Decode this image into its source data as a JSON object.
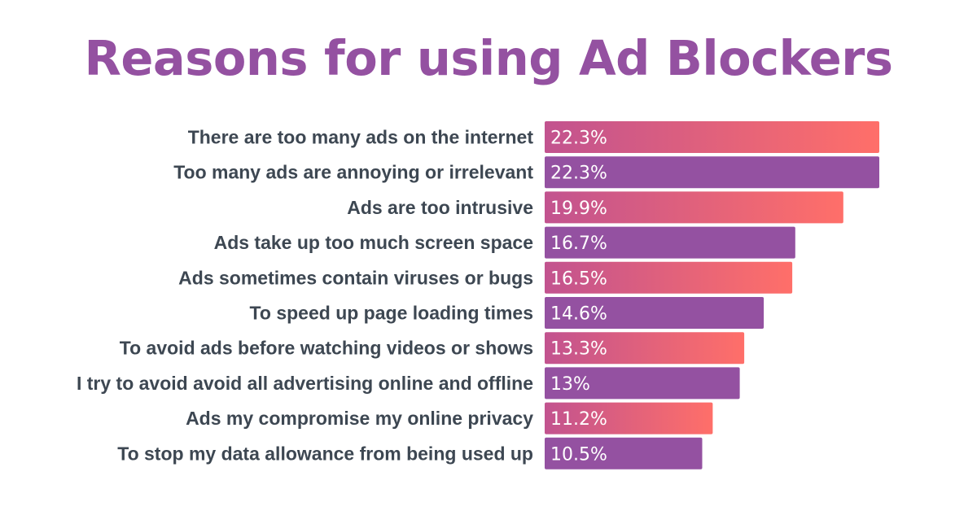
{
  "title": "Reasons for using Ad Blockers",
  "colors": {
    "title": "#9451a1",
    "label": "#3d4752",
    "purple": "#9451a1",
    "gradient_start": "#c2538f",
    "gradient_end": "#ff6f69",
    "value_text": "#ffffff"
  },
  "chart_data": {
    "type": "bar",
    "orientation": "horizontal",
    "title": "Reasons for using Ad Blockers",
    "categories": [
      "There are too many ads on the internet",
      "Too many ads are annoying or irrelevant",
      "Ads are too intrusive",
      "Ads take up too much screen space",
      "Ads sometimes contain viruses or bugs",
      "To speed up page loading times",
      "To avoid ads before watching videos or shows",
      "I try to avoid avoid all advertising online and offline",
      "Ads my compromise my online privacy",
      "To stop my data allowance from being used up"
    ],
    "values": [
      22.3,
      22.3,
      19.9,
      16.7,
      16.5,
      14.6,
      13.3,
      13,
      11.2,
      10.5
    ],
    "value_labels": [
      "22.3%",
      "22.3%",
      "19.9%",
      "16.7%",
      "16.5%",
      "14.6%",
      "13.3%",
      "13%",
      "11.2%",
      "10.5%"
    ],
    "bar_styles": [
      "gradient",
      "purple",
      "gradient",
      "purple",
      "gradient",
      "purple",
      "gradient",
      "purple",
      "gradient",
      "purple"
    ],
    "unit": "%",
    "xlim": [
      0,
      22.3
    ],
    "grid": false,
    "legend": "none"
  }
}
